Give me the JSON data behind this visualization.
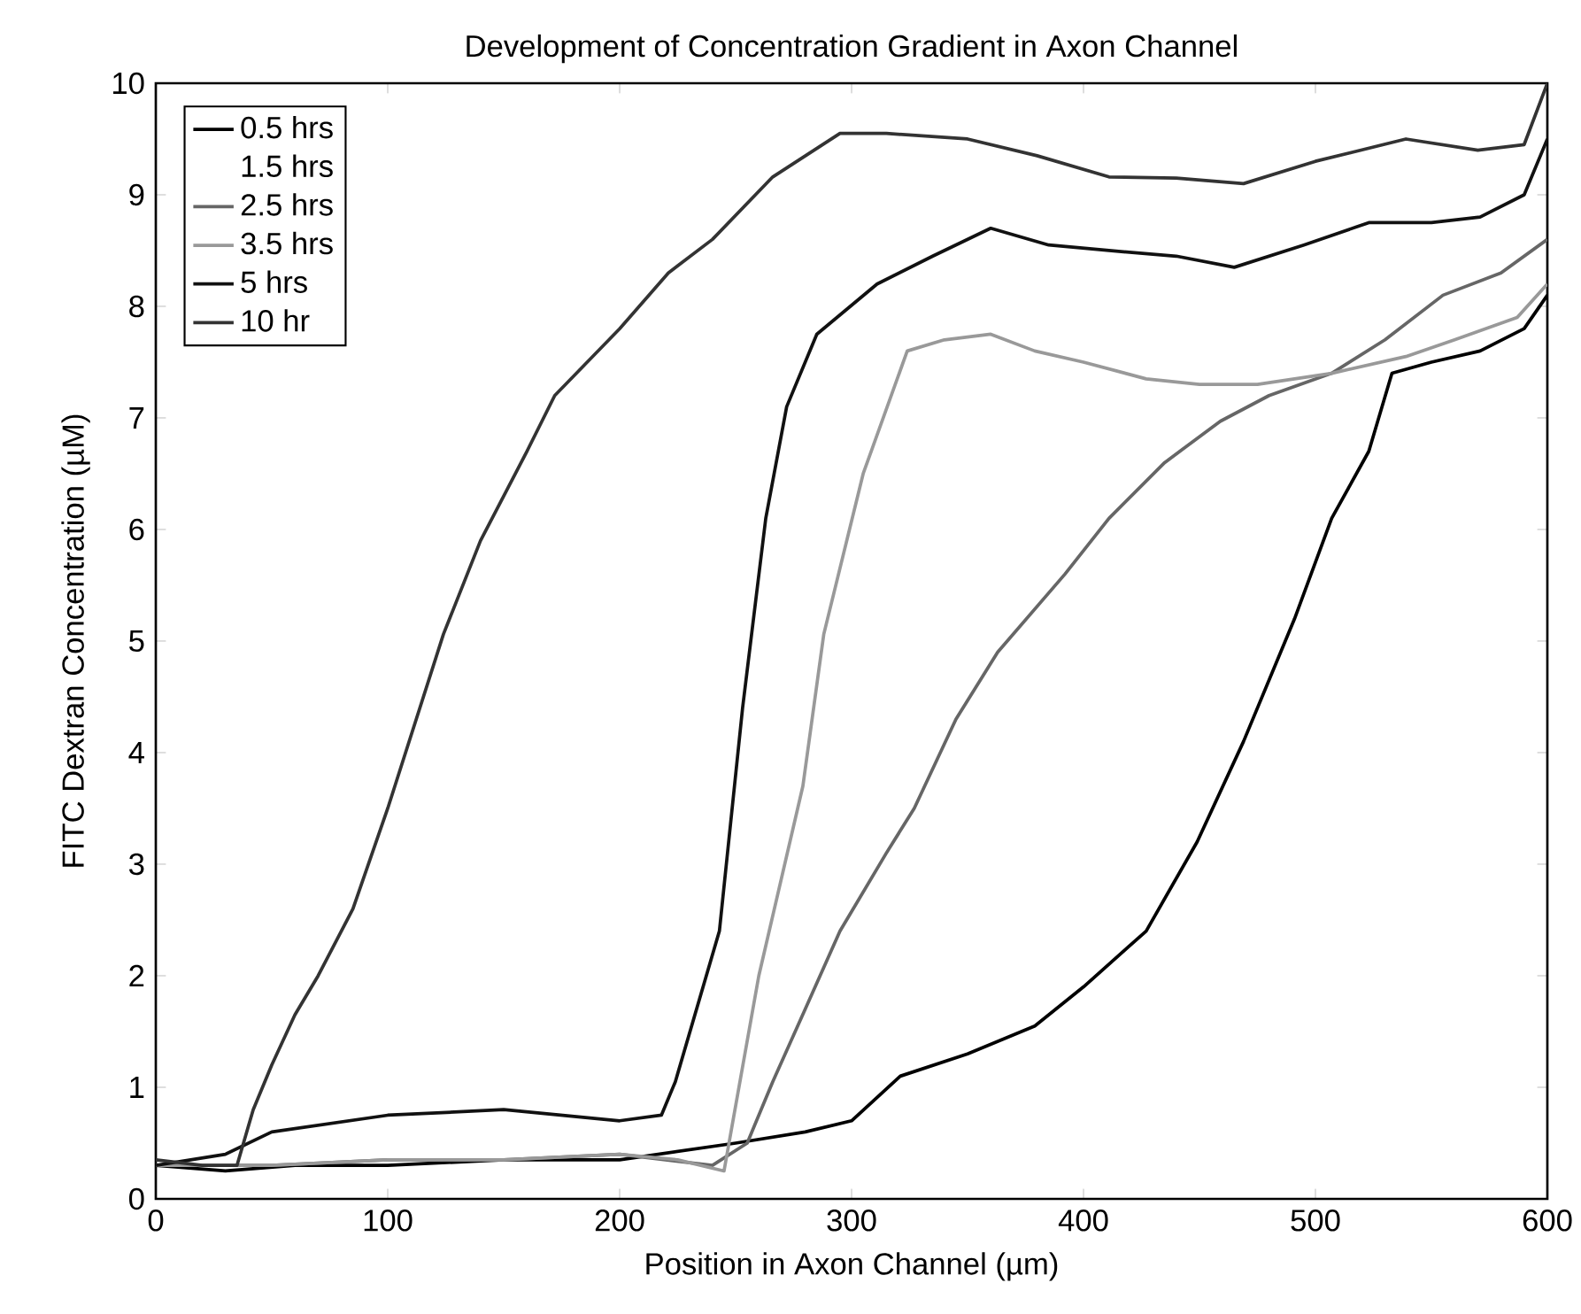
{
  "chart_data": {
    "type": "line",
    "title": "Development of Concentration Gradient in Axon Channel",
    "xlabel": "Position in Axon Channel (µm)",
    "ylabel": "FITC Dextran Concentration (µM)",
    "xlim": [
      0,
      600
    ],
    "ylim": [
      0,
      10
    ],
    "xticks": [
      0,
      100,
      200,
      300,
      400,
      500,
      600
    ],
    "yticks": [
      0,
      1,
      2,
      3,
      4,
      5,
      6,
      7,
      8,
      9,
      10
    ],
    "legend": "top left",
    "series": [
      {
        "name": "0.5 hrs",
        "color": "#000000",
        "x": [
          0,
          30,
          60,
          100,
          150,
          200,
          250,
          280,
          300,
          321,
          350,
          379,
          400,
          427,
          449,
          469,
          491,
          507,
          523,
          533,
          550,
          571,
          590,
          600
        ],
        "values": [
          0.3,
          0.25,
          0.3,
          0.3,
          0.35,
          0.35,
          0.5,
          0.6,
          0.7,
          1.1,
          1.3,
          1.55,
          1.9,
          2.4,
          3.2,
          4.1,
          5.2,
          6.1,
          6.7,
          7.4,
          7.5,
          7.6,
          7.8,
          8.1
        ]
      },
      {
        "name": "1.5 hrs"
      },
      {
        "name": "2.5 hrs",
        "color": "#666666",
        "x": [
          0,
          50,
          100,
          150,
          200,
          240,
          255,
          266,
          280,
          295,
          315,
          327,
          345,
          363,
          392,
          411,
          435,
          459,
          480,
          507,
          530,
          555,
          580,
          600
        ],
        "values": [
          0.3,
          0.3,
          0.35,
          0.35,
          0.4,
          0.3,
          0.5,
          1.05,
          1.7,
          2.4,
          3.1,
          3.5,
          4.3,
          4.9,
          5.6,
          6.1,
          6.6,
          6.97,
          7.2,
          7.4,
          7.7,
          8.1,
          8.3,
          8.6
        ]
      },
      {
        "name": "3.5 hrs",
        "color": "#999999",
        "x": [
          0,
          50,
          100,
          150,
          200,
          225,
          245,
          260,
          279,
          288,
          305,
          324,
          340,
          360,
          379,
          400,
          427,
          450,
          475,
          507,
          539,
          560,
          587,
          600
        ],
        "values": [
          0.3,
          0.3,
          0.35,
          0.35,
          0.4,
          0.35,
          0.25,
          2.0,
          3.7,
          5.06,
          6.5,
          7.6,
          7.7,
          7.75,
          7.6,
          7.5,
          7.35,
          7.3,
          7.3,
          7.4,
          7.55,
          7.7,
          7.9,
          8.2
        ]
      },
      {
        "name": "5 hrs",
        "color": "#111111",
        "x": [
          0,
          30,
          50,
          100,
          150,
          200,
          218,
          224,
          243,
          253,
          263,
          272,
          285,
          311,
          335,
          360,
          385,
          411,
          440,
          465,
          495,
          523,
          550,
          571,
          590,
          600
        ],
        "values": [
          0.3,
          0.4,
          0.6,
          0.75,
          0.8,
          0.7,
          0.75,
          1.05,
          2.4,
          4.4,
          6.1,
          7.1,
          7.75,
          8.2,
          8.45,
          8.7,
          8.55,
          8.5,
          8.45,
          8.35,
          8.55,
          8.75,
          8.75,
          8.8,
          9.0,
          9.5
        ]
      },
      {
        "name": "10 hr",
        "color": "#333333",
        "x": [
          0,
          20,
          35,
          42,
          50,
          60,
          70,
          85,
          100,
          124,
          140,
          160,
          172,
          200,
          221,
          240,
          266,
          295,
          315,
          350,
          380,
          411,
          440,
          469,
          500,
          539,
          570,
          590,
          600
        ],
        "values": [
          0.35,
          0.3,
          0.3,
          0.8,
          1.2,
          1.65,
          2.0,
          2.6,
          3.5,
          5.06,
          5.9,
          6.7,
          7.2,
          7.8,
          8.3,
          8.6,
          9.16,
          9.55,
          9.55,
          9.5,
          9.35,
          9.16,
          9.15,
          9.1,
          9.3,
          9.5,
          9.4,
          9.45,
          10.0
        ]
      }
    ]
  }
}
